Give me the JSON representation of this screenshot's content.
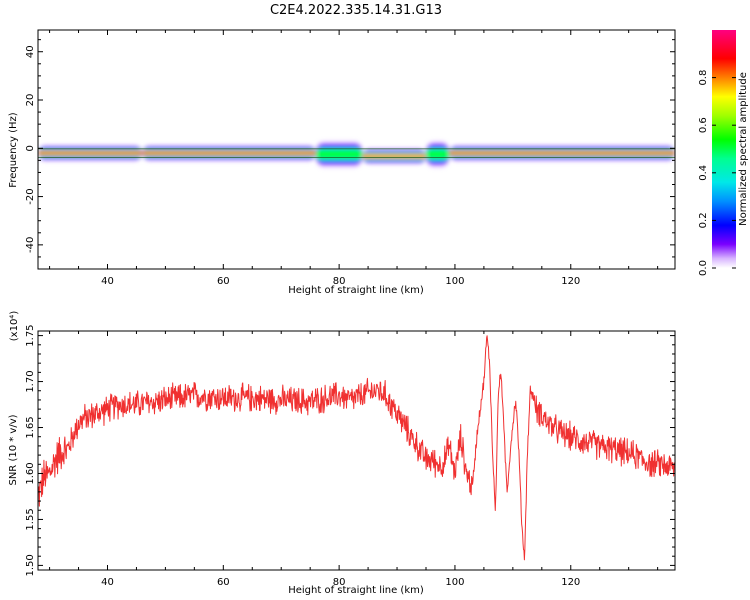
{
  "title": "C2E4.2022.335.14.31.G13",
  "colors": {
    "snr_line": "#f03030",
    "axes": "#000000"
  },
  "chart_data": [
    {
      "type": "heatmap",
      "xlabel": "Height of straight line (km)",
      "ylabel": "Frequency (Hz)",
      "xlim": [
        28,
        138
      ],
      "ylim": [
        -50,
        49
      ],
      "x_ticks": [
        40,
        60,
        80,
        100,
        120
      ],
      "y_ticks": [
        -40,
        -20,
        0,
        20,
        40
      ],
      "colormap": "gist_ncar-like (white/purple → blue → cyan → green → yellow → red → magenta)",
      "colorbar": {
        "label": "Normalized spectral amplitude",
        "range": [
          0.0,
          1.0
        ],
        "ticks": [
          "0.0",
          "0.2",
          "0.4",
          "0.6",
          "0.8"
        ]
      },
      "band": {
        "center_frequency_hz": -2,
        "description": "narrow high-amplitude band near -2 Hz across all heights, widening/weakening around 80-98 km and dipping to about -3 Hz near 90 km",
        "segments": [
          {
            "x_start": 28,
            "x_end": 46,
            "center_hz": -2,
            "peak": 0.9
          },
          {
            "x_start": 46,
            "x_end": 76,
            "center_hz": -2,
            "peak": 0.95
          },
          {
            "x_start": 76,
            "x_end": 84,
            "center_hz": -2.5,
            "peak": 0.6
          },
          {
            "x_start": 84,
            "x_end": 95,
            "center_hz": -3.3,
            "peak": 0.85
          },
          {
            "x_start": 95,
            "x_end": 99,
            "center_hz": -2.5,
            "peak": 0.55
          },
          {
            "x_start": 99,
            "x_end": 138,
            "center_hz": -2,
            "peak": 0.95
          }
        ]
      }
    },
    {
      "type": "line",
      "xlabel": "Height of straight line (km)",
      "ylabel": "SNR (10 * v/v)",
      "y_multiplier": "(x10⁴)",
      "xlim": [
        28,
        138
      ],
      "ylim": [
        1.495,
        1.755
      ],
      "x_ticks": [
        40,
        60,
        80,
        100,
        120
      ],
      "y_ticks": [
        "1.50",
        "1.55",
        "1.60",
        "1.65",
        "1.70",
        "1.75"
      ],
      "series": [
        {
          "x": [
            28,
            29,
            30,
            31,
            32,
            33,
            34,
            35,
            36,
            38,
            40,
            42,
            45,
            50,
            55,
            60,
            65,
            70,
            75,
            80,
            82,
            84,
            85,
            86,
            87,
            88,
            89,
            90,
            92,
            94,
            95,
            96,
            97,
            98,
            99,
            100,
            101,
            102,
            103,
            104,
            105,
            105.5,
            106,
            106.5,
            107,
            107.5,
            108,
            108.5,
            109,
            109.5,
            110,
            110.5,
            111,
            111.5,
            112,
            112.5,
            113,
            113.5,
            114,
            115,
            116,
            118,
            120,
            122,
            125,
            128,
            131,
            134,
            136,
            138
          ],
          "y": [
            1.575,
            1.595,
            1.6,
            1.615,
            1.625,
            1.625,
            1.64,
            1.655,
            1.66,
            1.665,
            1.67,
            1.675,
            1.675,
            1.68,
            1.685,
            1.682,
            1.682,
            1.68,
            1.678,
            1.685,
            1.68,
            1.685,
            1.688,
            1.69,
            1.69,
            1.685,
            1.675,
            1.665,
            1.645,
            1.625,
            1.615,
            1.615,
            1.61,
            1.61,
            1.63,
            1.6,
            1.64,
            1.6,
            1.585,
            1.655,
            1.7,
            1.75,
            1.72,
            1.62,
            1.56,
            1.69,
            1.71,
            1.64,
            1.58,
            1.62,
            1.655,
            1.68,
            1.63,
            1.55,
            1.505,
            1.62,
            1.69,
            1.685,
            1.67,
            1.665,
            1.655,
            1.645,
            1.64,
            1.635,
            1.63,
            1.625,
            1.62,
            1.61,
            1.61,
            1.605
          ]
        }
      ]
    }
  ]
}
